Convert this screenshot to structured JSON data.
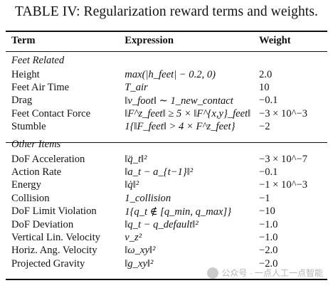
{
  "caption": "TABLE IV: Regularization reward terms and weights.",
  "headers": {
    "term": "Term",
    "expression": "Expression",
    "weight": "Weight"
  },
  "sections": [
    {
      "title": "Feet Related",
      "rows": [
        {
          "term": "Height",
          "expression": "max(|h_feet| − 0.2, 0)",
          "weight": "2.0"
        },
        {
          "term": "Feet Air Time",
          "expression": "T_air",
          "weight": "10"
        },
        {
          "term": "Drag",
          "expression": "‖v_foot‖ ∼ 1_new_contact",
          "weight": "−0.1"
        },
        {
          "term": "Feet Contact Force",
          "expression": "‖F^z_feet‖ ≥ 5 × ‖F^{x,y}_feet‖",
          "weight": "−3 × 10^−3"
        },
        {
          "term": "Stumble",
          "expression": "1{‖F_feet‖ > 4 × F^z_feet}",
          "weight": "−2"
        }
      ]
    },
    {
      "title": "Other Items",
      "rows": [
        {
          "term": "DoF Acceleration",
          "expression": "‖q̈_t‖²",
          "weight": "−3 × 10^−7"
        },
        {
          "term": "Action Rate",
          "expression": "‖a_t − a_{t−1}‖²",
          "weight": "−0.1"
        },
        {
          "term": "Energy",
          "expression": "‖q̇‖²",
          "weight": "−1 × 10^−3"
        },
        {
          "term": "Collision",
          "expression": "1_collision",
          "weight": "−1"
        },
        {
          "term": "DoF Limit Violation",
          "expression": "1{q_t ∉ [q_min, q_max]}",
          "weight": "−10"
        },
        {
          "term": "DoF Deviation",
          "expression": "‖q_t − q_default‖²",
          "weight": "−1.0"
        },
        {
          "term": "Vertical Lin. Velocity",
          "expression": "v_z²",
          "weight": "−1.0"
        },
        {
          "term": "Horiz. Ang. Velocity",
          "expression": "‖ω_xy‖²",
          "weight": "−2.0"
        },
        {
          "term": "Projected Gravity",
          "expression": "‖g_xy‖²",
          "weight": "−2.0"
        }
      ]
    }
  ],
  "watermark": "公众号 · 一点人工一点智能"
}
